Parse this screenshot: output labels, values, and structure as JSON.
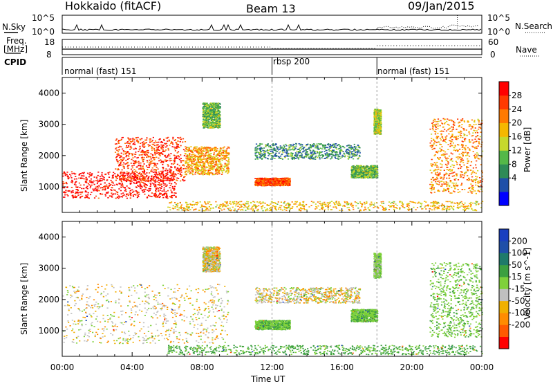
{
  "header": {
    "station": "Hokkaido (fitACF)",
    "beam": "Beam 13",
    "date": "09/Jan/2015"
  },
  "panels": {
    "nsky_label": "N.Sky",
    "nsky_ticks": [
      "10^5",
      "10^0"
    ],
    "nsearch_label": "N.Search",
    "nsearch_ticks": [
      "10^5",
      "10^0"
    ],
    "freq_label": "Freq.",
    "freq_unit": "[MHz]",
    "freq_ticks": [
      "18",
      "8"
    ],
    "nave_label": "Nave",
    "nave_ticks": [
      "60",
      "0"
    ],
    "cpid_label": "CPID"
  },
  "cpid_segments": [
    {
      "label": "normal (fast) 151",
      "start": 0,
      "end": 12
    },
    {
      "label": "rbsp 200",
      "start": 12,
      "end": 18
    },
    {
      "label": "normal (fast) 151",
      "start": 18,
      "end": 24
    }
  ],
  "colors": {
    "power": [
      "#0000ff",
      "#1f4fa8",
      "#2e8b57",
      "#54b848",
      "#c6d92c",
      "#f5b800",
      "#ff7a00",
      "#ff3a00",
      "#ff0000"
    ],
    "velocity": [
      "#ff0000",
      "#ff5a00",
      "#ff8c00",
      "#f0b000",
      "#c0c0c0",
      "#7fd13b",
      "#3ca040",
      "#1e7a6a",
      "#1f4fa8",
      "#1a3fc0"
    ]
  },
  "chart_data": [
    {
      "type": "heatmap",
      "name": "power",
      "ylabel": "Slant Range [km]",
      "colorbar_label": "Power [dB]",
      "colorbar_ticks": [
        "28",
        "24",
        "20",
        "16",
        "12",
        "8",
        "4"
      ],
      "xlim": [
        0,
        24
      ],
      "ylim": [
        180,
        4500
      ],
      "yticks": [
        "1000",
        "2000",
        "3000",
        "4000"
      ],
      "features": [
        {
          "t": [
            0,
            6.5
          ],
          "r": [
            650,
            1500
          ],
          "level": 0.95
        },
        {
          "t": [
            3,
            7
          ],
          "r": [
            1200,
            2600
          ],
          "level": 0.85
        },
        {
          "t": [
            7,
            9.5
          ],
          "r": [
            1400,
            2300
          ],
          "level": 0.65
        },
        {
          "t": [
            8,
            9
          ],
          "r": [
            2900,
            3700
          ],
          "level": 0.4
        },
        {
          "t": [
            11,
            13
          ],
          "r": [
            1050,
            1300
          ],
          "level": 0.8
        },
        {
          "t": [
            11,
            17
          ],
          "r": [
            1900,
            2400
          ],
          "level": 0.3
        },
        {
          "t": [
            6,
            24
          ],
          "r": [
            250,
            550
          ],
          "level": 0.6
        },
        {
          "t": [
            16.5,
            18
          ],
          "r": [
            1300,
            1700
          ],
          "level": 0.4
        },
        {
          "t": [
            17.8,
            18.2
          ],
          "r": [
            2700,
            3500
          ],
          "level": 0.5
        },
        {
          "t": [
            21,
            24
          ],
          "r": [
            800,
            3200
          ],
          "level": 0.7
        }
      ]
    },
    {
      "type": "heatmap",
      "name": "velocity",
      "xlabel": "Time UT",
      "ylabel": "Slant Range [km]",
      "colorbar_label": "Velocity [m s^-1]",
      "colorbar_ticks": [
        "200",
        "100",
        "50",
        "15",
        "-15",
        "-50",
        "-100",
        "-200"
      ],
      "xlim": [
        0,
        24
      ],
      "ylim": [
        180,
        4500
      ],
      "xticks": [
        "00:00",
        "04:00",
        "08:00",
        "12:00",
        "16:00",
        "20:00",
        "00:00"
      ],
      "yticks": [
        "1000",
        "2000",
        "3000",
        "4000"
      ],
      "features": [
        {
          "t": [
            0,
            9.5
          ],
          "r": [
            600,
            2500
          ],
          "vel": 0
        },
        {
          "t": [
            8,
            9
          ],
          "r": [
            2900,
            3700
          ],
          "vel": 0
        },
        {
          "t": [
            11,
            17
          ],
          "r": [
            1900,
            2400
          ],
          "vel": 0
        },
        {
          "t": [
            11,
            13
          ],
          "r": [
            1050,
            1350
          ],
          "vel": 40
        },
        {
          "t": [
            6,
            24
          ],
          "r": [
            250,
            550
          ],
          "vel": 60
        },
        {
          "t": [
            16.5,
            18
          ],
          "r": [
            1300,
            1700
          ],
          "vel": 40
        },
        {
          "t": [
            17.8,
            18.2
          ],
          "r": [
            2700,
            3500
          ],
          "vel": 30
        },
        {
          "t": [
            21,
            24
          ],
          "r": [
            800,
            3200
          ],
          "vel": 40
        }
      ]
    }
  ]
}
